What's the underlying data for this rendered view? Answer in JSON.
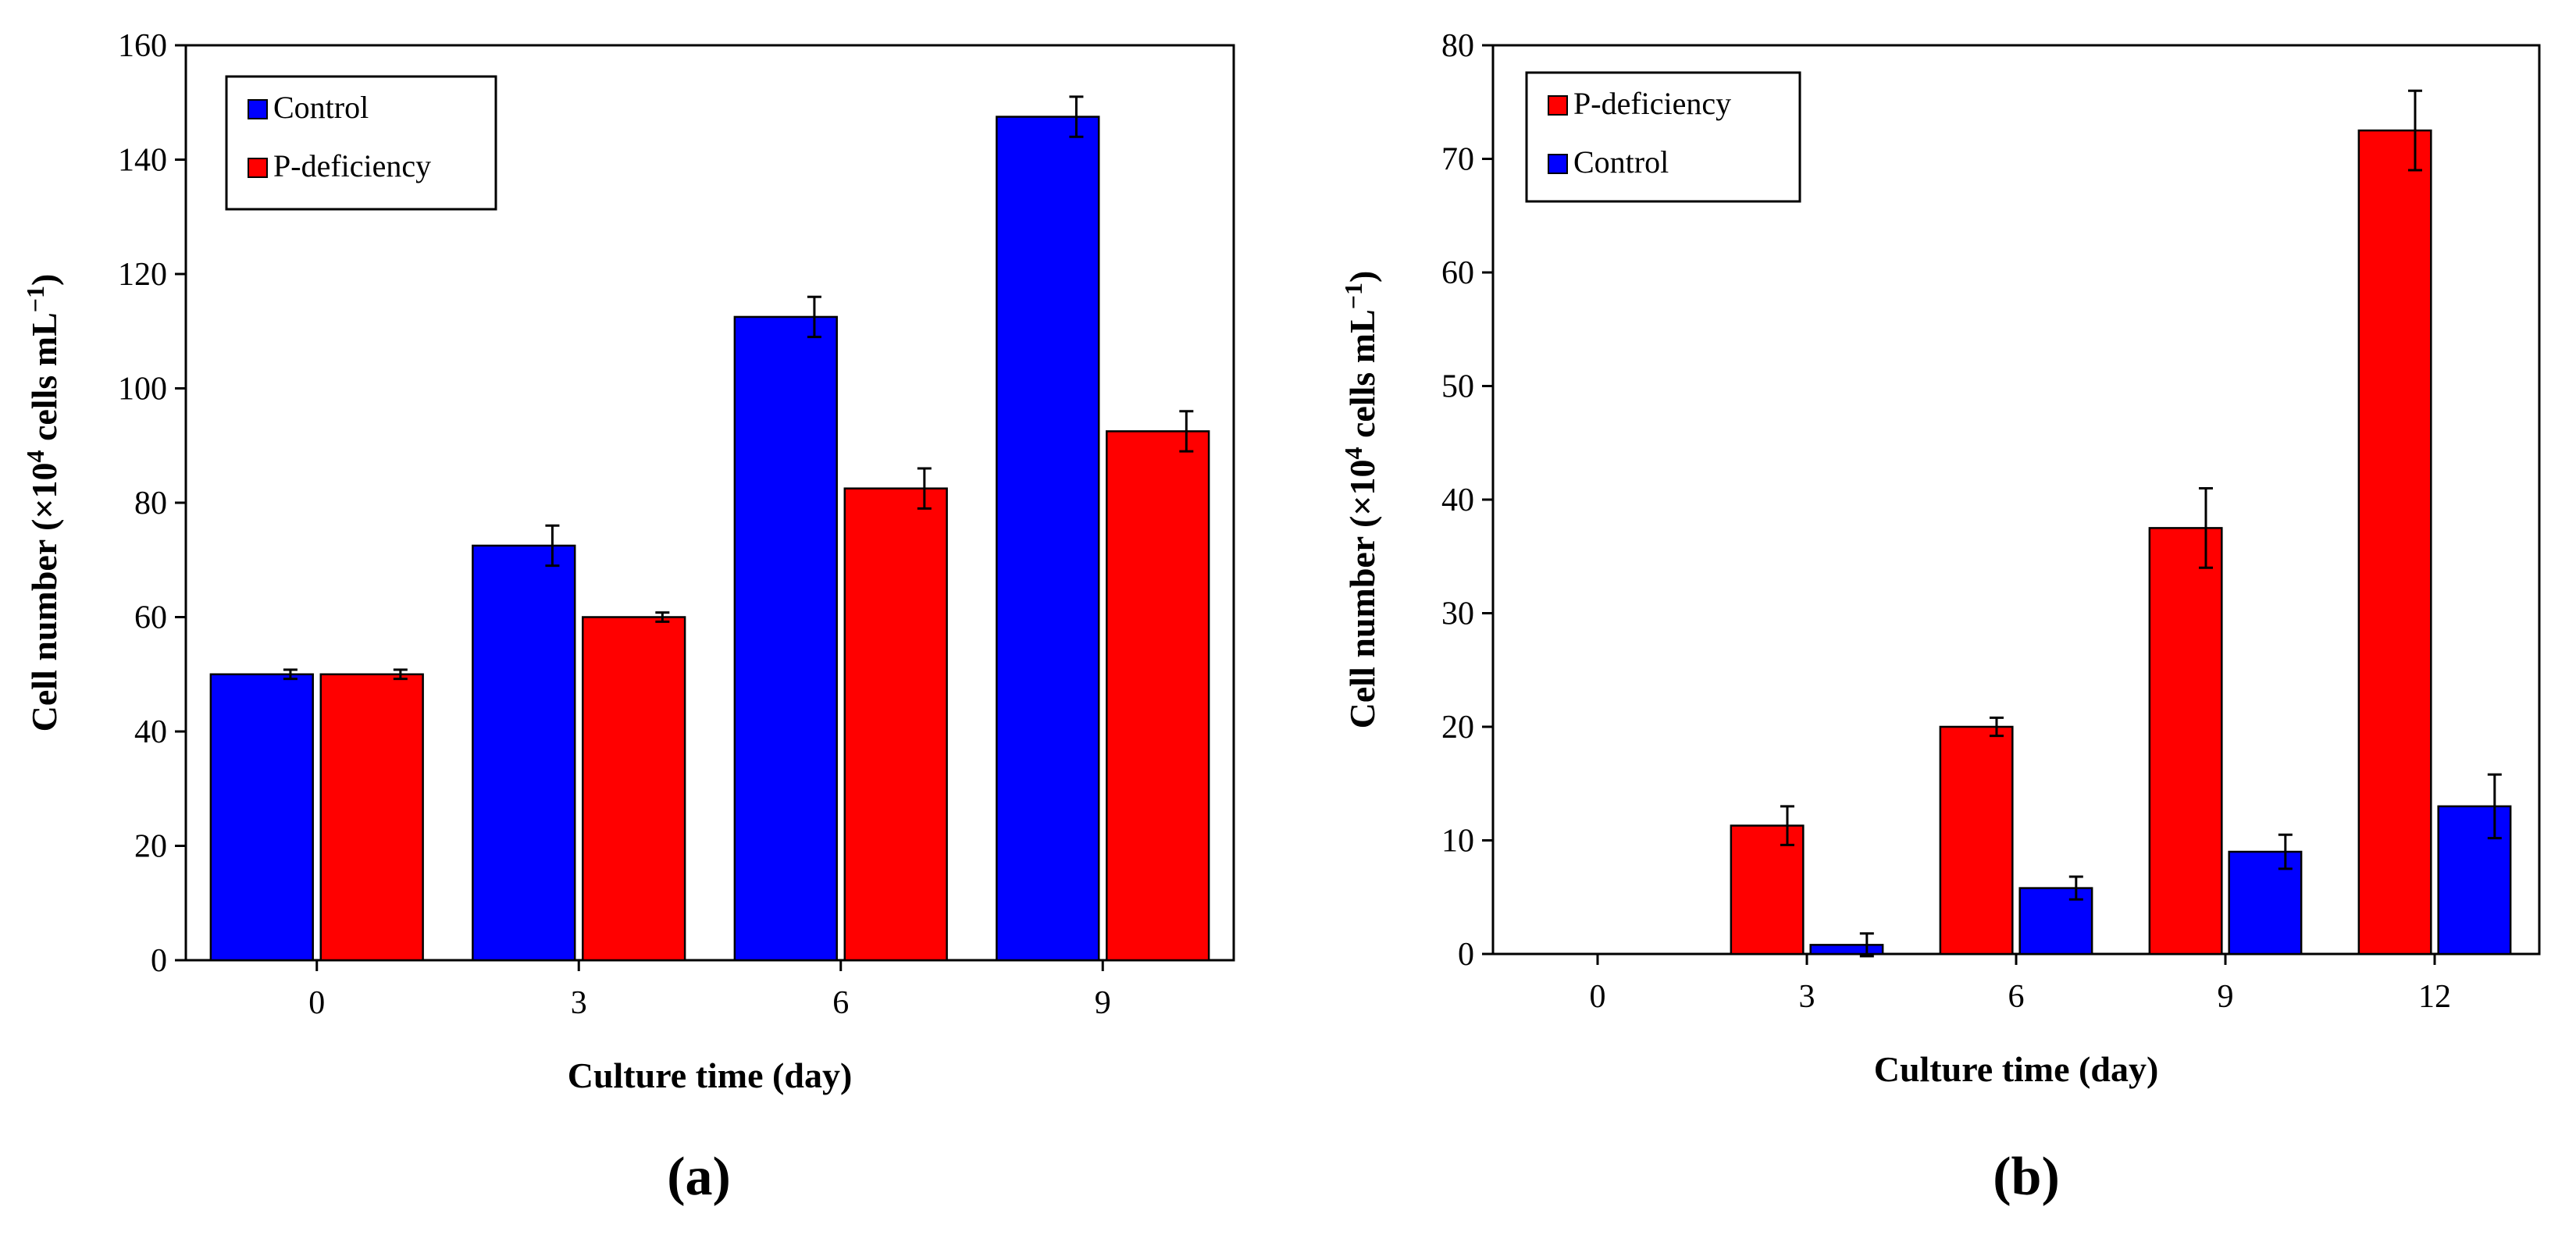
{
  "chart_data": [
    {
      "type": "bar",
      "panel_label": "(a)",
      "categories": [
        "0",
        "3",
        "6",
        "9"
      ],
      "series": [
        {
          "name": "Control",
          "color": "#0000ff",
          "values": [
            50,
            72.5,
            112.5,
            147.5
          ],
          "errors": [
            0.8,
            3.5,
            3.5,
            3.5
          ]
        },
        {
          "name": "P-deficiency",
          "color": "#ff0000",
          "values": [
            50,
            60,
            82.5,
            92.5
          ],
          "errors": [
            0.8,
            0.8,
            3.5,
            3.5
          ]
        }
      ],
      "legend": [
        "Control",
        "P-deficiency"
      ],
      "legend_position": "top-left",
      "xlabel": "Culture time (day)",
      "ylabel_main": "Cell number (×10",
      "ylabel_sup": "4",
      "ylabel_mid": " cells mL",
      "ylabel_sup2": "−1",
      "ylabel_end": ")",
      "ylim": [
        0,
        160
      ],
      "yticks": [
        "0",
        "20",
        "40",
        "60",
        "80",
        "100",
        "120",
        "140",
        "160"
      ]
    },
    {
      "type": "bar",
      "panel_label": "(b)",
      "categories": [
        "0",
        "3",
        "6",
        "9",
        "12"
      ],
      "series": [
        {
          "name": "P-deficiency",
          "color": "#ff0000",
          "values": [
            0,
            11.3,
            20,
            37.5,
            72.5
          ],
          "errors": [
            0,
            1.7,
            0.8,
            3.5,
            3.5
          ]
        },
        {
          "name": "Control",
          "color": "#0000ff",
          "values": [
            0,
            0.8,
            5.8,
            9,
            13
          ],
          "errors": [
            0,
            1.0,
            1.0,
            1.5,
            2.8
          ]
        }
      ],
      "legend": [
        "P-deficiency",
        "Control"
      ],
      "legend_position": "top-left",
      "xlabel": "Culture time (day)",
      "ylabel_main": "Cell number (×10",
      "ylabel_sup": "4",
      "ylabel_mid": " cells mL",
      "ylabel_sup2": "−1",
      "ylabel_end": ")",
      "ylim": [
        0,
        80
      ],
      "yticks": [
        "0",
        "10",
        "20",
        "30",
        "40",
        "50",
        "60",
        "70",
        "80"
      ]
    }
  ]
}
